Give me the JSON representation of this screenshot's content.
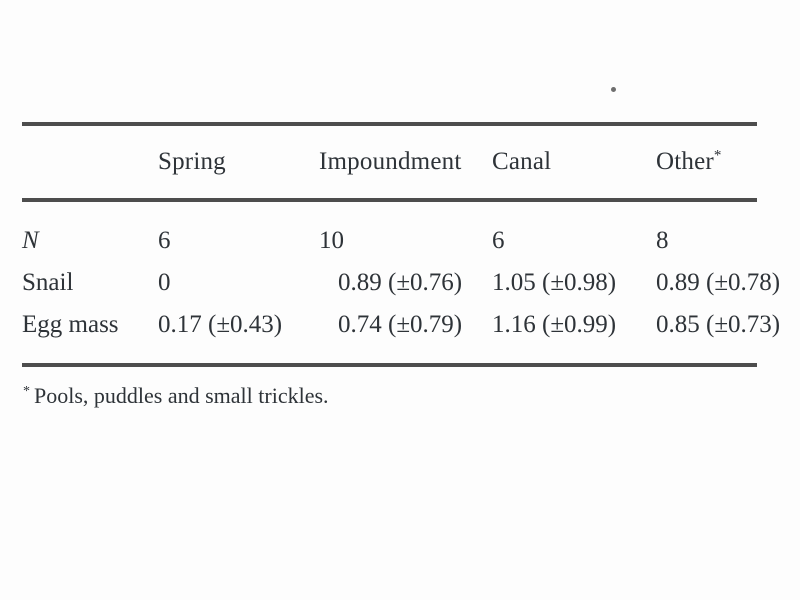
{
  "page": {
    "background": "#fdfdfd",
    "text_color": "#2e3338",
    "rule_color": "#4d4d4d"
  },
  "stray_mark": {
    "description": "small-dot-above-table"
  },
  "table": {
    "headers": [
      {
        "label": "Spring",
        "sup": ""
      },
      {
        "label": "Impoundment",
        "sup": ""
      },
      {
        "label": "Canal",
        "sup": ""
      },
      {
        "label": "Other",
        "sup": "*"
      }
    ],
    "rows": [
      {
        "label": "N",
        "values": [
          "6",
          "10",
          "6",
          "8"
        ]
      },
      {
        "label": "Snail",
        "values": [
          "0",
          "0.89 (±0.76)",
          "1.05 (±0.98)",
          "0.89 (±0.78)"
        ]
      },
      {
        "label": "Egg mass",
        "values": [
          "0.17 (±0.43)",
          "0.74 (±0.79)",
          "1.16 (±0.99)",
          "0.85 (±0.73)"
        ]
      }
    ],
    "footnote": {
      "marker": "*",
      "text": "Pools, puddles and small trickles."
    }
  }
}
